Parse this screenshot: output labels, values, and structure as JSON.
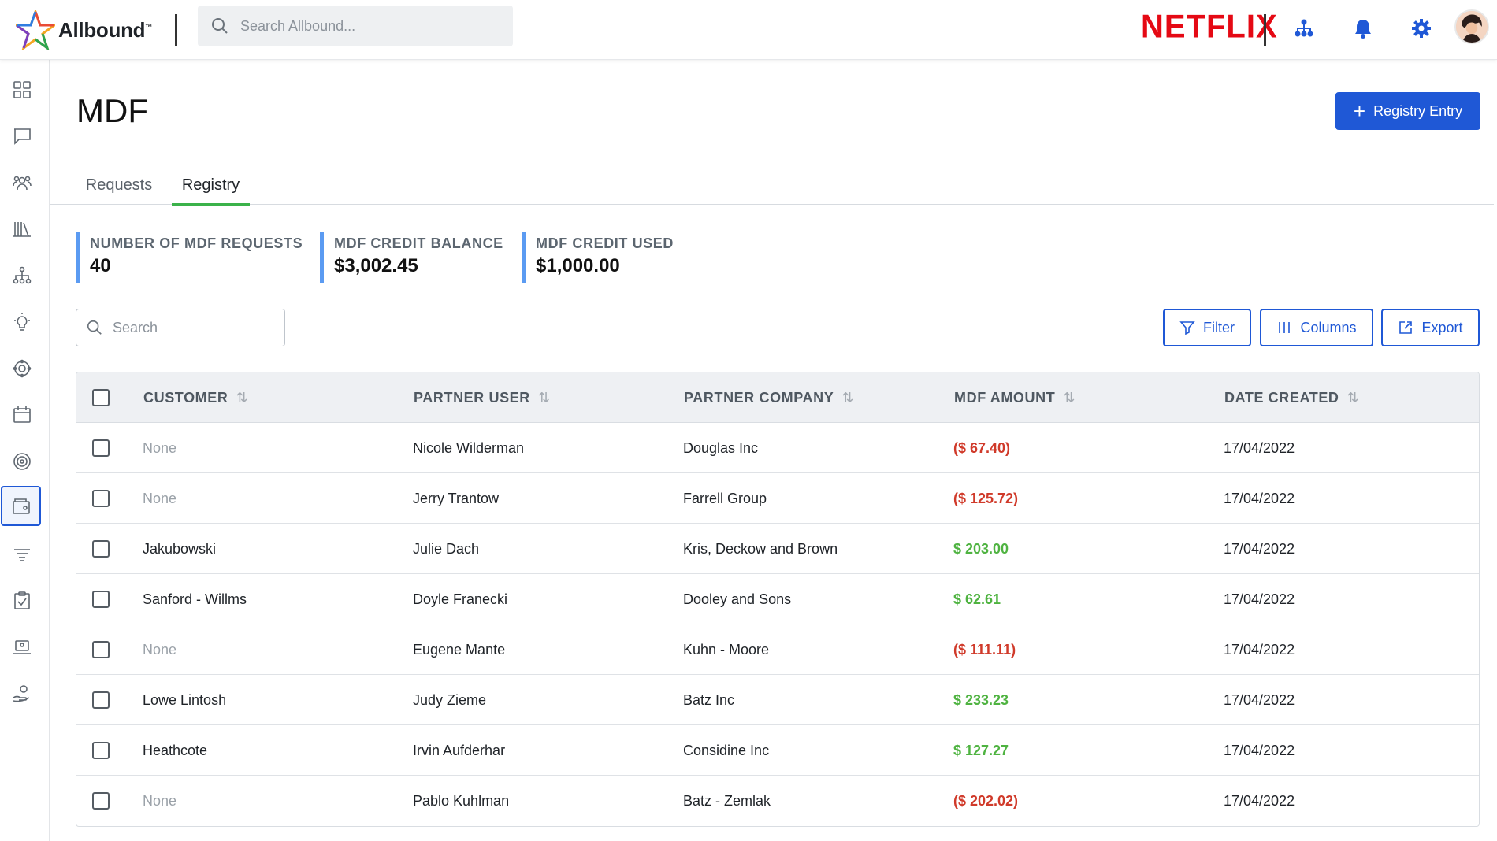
{
  "brand": {
    "name": "Allbound",
    "tm": "™"
  },
  "search_top": {
    "placeholder": "Search Allbound..."
  },
  "partner_logo": "NETFLIX",
  "page": {
    "title": "MDF",
    "primary_button": "Registry Entry"
  },
  "tabs": [
    {
      "label": "Requests",
      "active": false
    },
    {
      "label": "Registry",
      "active": true
    }
  ],
  "stats": [
    {
      "label": "NUMBER OF MDF REQUESTS",
      "value": "40"
    },
    {
      "label": "MDF CREDIT BALANCE",
      "value": "$3,002.45"
    },
    {
      "label": "MDF CREDIT USED",
      "value": "$1,000.00"
    }
  ],
  "search": {
    "placeholder": "Search"
  },
  "toolbar": {
    "filter": "Filter",
    "columns": "Columns",
    "export": "Export"
  },
  "table": {
    "headers": [
      "CUSTOMER",
      "PARTNER USER",
      "PARTNER COMPANY",
      "MDF AMOUNT",
      "DATE CREATED"
    ],
    "rows": [
      {
        "customer": "None",
        "user": "Nicole Wilderman",
        "company": "Douglas Inc",
        "amount": "($ 67.40)",
        "date": "17/04/2022"
      },
      {
        "customer": "None",
        "user": "Jerry Trantow",
        "company": "Farrell Group",
        "amount": "($ 125.72)",
        "date": "17/04/2022"
      },
      {
        "customer": "Jakubowski",
        "user": "Julie Dach",
        "company": "Kris, Deckow and Brown",
        "amount": "$ 203.00",
        "date": "17/04/2022"
      },
      {
        "customer": "Sanford - Willms",
        "user": "Doyle Franecki",
        "company": "Dooley and Sons",
        "amount": "$ 62.61",
        "date": "17/04/2022"
      },
      {
        "customer": "None",
        "user": "Eugene Mante",
        "company": "Kuhn - Moore",
        "amount": "($ 111.11)",
        "date": "17/04/2022"
      },
      {
        "customer": "Lowe Lintosh",
        "user": "Judy Zieme",
        "company": "Batz Inc",
        "amount": "$ 233.23",
        "date": "17/04/2022"
      },
      {
        "customer": "Heathcote",
        "user": "Irvin Aufderhar",
        "company": "Considine Inc",
        "amount": "$ 127.27",
        "date": "17/04/2022"
      },
      {
        "customer": "None",
        "user": "Pablo Kuhlman",
        "company": "Batz - Zemlak",
        "amount": "($ 202.02)",
        "date": "17/04/2022"
      }
    ]
  },
  "colors": {
    "primary": "#1f58d6",
    "positive": "#4fb341",
    "negative": "#d03a2a",
    "tab_indicator": "#3bb24a",
    "stat_accent": "#5b9bf2"
  },
  "sidebar_icons": [
    "dashboard-icon",
    "chat-icon",
    "community-icon",
    "library-icon",
    "org-chart-icon",
    "lightbulb-icon",
    "integrations-icon",
    "calendar-icon",
    "target-icon",
    "mdf-wallet-icon",
    "funnel-icon",
    "clipboard-check-icon",
    "training-laptop-icon",
    "hand-coin-icon"
  ]
}
